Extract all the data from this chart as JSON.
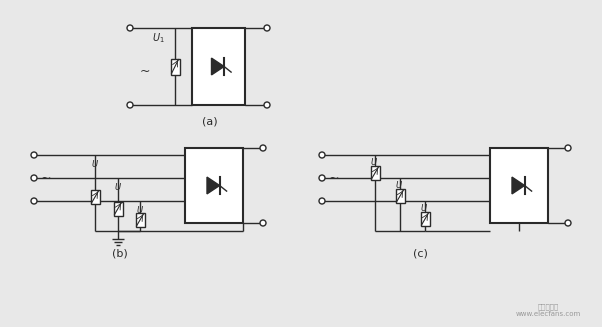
{
  "bg_color": "#e8e8e8",
  "line_color": "#2a2a2a",
  "label_a": "(a)",
  "label_b": "(b)",
  "label_c": "(c)",
  "tilde": "~",
  "U_label": "U",
  "fig_w": 6.02,
  "fig_h": 3.27,
  "dpi": 100
}
